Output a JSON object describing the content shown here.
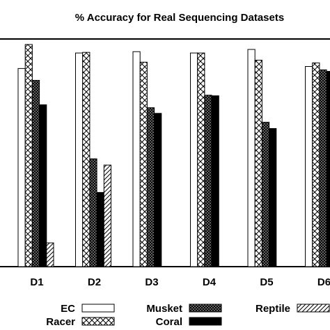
{
  "chart_data": {
    "type": "bar",
    "title": "% Accuracy for Real Sequencing Datasets",
    "categories": [
      "D1",
      "D2",
      "D3",
      "D4",
      "D5",
      "D6"
    ],
    "ylim": [
      0,
      100
    ],
    "grid": false,
    "legend_position": "bottom",
    "series": [
      {
        "name": "EC",
        "pattern": "white",
        "values": [
          88.4,
          95.3,
          95.9,
          95.3,
          96.9,
          89.3
        ]
      },
      {
        "name": "Racer",
        "pattern": "crosshatch",
        "values": [
          99.1,
          95.6,
          91.2,
          95.3,
          92.1,
          90.9
        ]
      },
      {
        "name": "Musket",
        "pattern": "dense-hatch",
        "values": [
          83.1,
          48.1,
          70.9,
          76.5,
          64.4,
          87.8
        ]
      },
      {
        "name": "Coral",
        "pattern": "black",
        "values": [
          72.2,
          33.1,
          68.4,
          76.2,
          61.6,
          87.1
        ]
      },
      {
        "name": "Reptile",
        "pattern": "diagonal",
        "values": [
          10.6,
          45.3,
          null,
          null,
          null,
          null
        ]
      }
    ],
    "colors": {
      "fill": "#ffffff",
      "ink": "#000000",
      "dense": "#6a6a6a"
    }
  }
}
